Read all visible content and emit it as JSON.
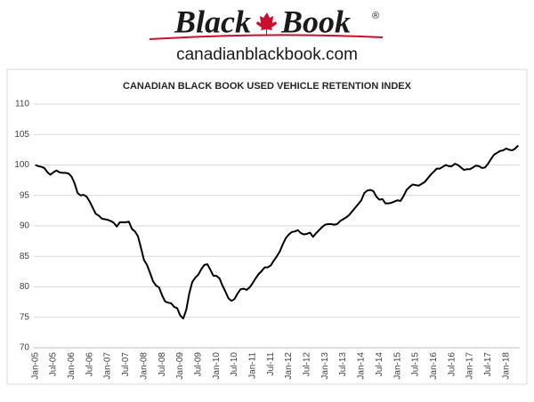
{
  "header": {
    "logo_left": "Black",
    "logo_right": "Book",
    "registered": "®",
    "website": "canadianblackbook.com"
  },
  "chart_data": {
    "type": "line",
    "title": "CANADIAN BLACK BOOK USED VEHICLE RETENTION INDEX",
    "ylim": [
      70,
      110
    ],
    "yticks": [
      70,
      75,
      80,
      85,
      90,
      95,
      100,
      105,
      110
    ],
    "grid": true,
    "color": "#000000",
    "categories": [
      "Jan-05",
      null,
      null,
      null,
      null,
      null,
      "Jul-05",
      null,
      null,
      null,
      null,
      null,
      "Jan-06",
      null,
      null,
      null,
      null,
      null,
      "Jul-06",
      null,
      null,
      null,
      null,
      null,
      "Jan-07",
      null,
      null,
      null,
      null,
      null,
      "Jul-07",
      null,
      null,
      null,
      null,
      null,
      "Jan-08",
      null,
      null,
      null,
      null,
      null,
      "Jul-08",
      null,
      null,
      null,
      null,
      null,
      "Jan-09",
      null,
      null,
      null,
      null,
      null,
      "Jul-09",
      null,
      null,
      null,
      null,
      null,
      "Jan-10",
      null,
      null,
      null,
      null,
      null,
      "Jul-10",
      null,
      null,
      null,
      null,
      null,
      "Jan-11",
      null,
      null,
      null,
      null,
      null,
      "Jul-11",
      null,
      null,
      null,
      null,
      null,
      "Jan-12",
      null,
      null,
      null,
      null,
      null,
      "Jul-12",
      null,
      null,
      null,
      null,
      null,
      "Jan-13",
      null,
      null,
      null,
      null,
      null,
      "Jul-13",
      null,
      null,
      null,
      null,
      null,
      "Jan-14",
      null,
      null,
      null,
      null,
      null,
      "Jul-14",
      null,
      null,
      null,
      null,
      null,
      "Jan-15",
      null,
      null,
      null,
      null,
      null,
      "Jul-15",
      null,
      null,
      null,
      null,
      null,
      "Jan-16",
      null,
      null,
      null,
      null,
      null,
      "Jul-16",
      null,
      null,
      null,
      null,
      null,
      "Jan-17",
      null,
      null,
      null,
      null,
      null,
      "Jul-17",
      null,
      null,
      null,
      null,
      null,
      "Jan-18",
      null,
      null,
      null,
      null
    ],
    "values": [
      100,
      99.8,
      99.7,
      99.5,
      98.8,
      98.4,
      98.8,
      99.1,
      98.8,
      98.7,
      98.7,
      98.6,
      98.1,
      97,
      95.4,
      95,
      95.1,
      94.8,
      94,
      93,
      92,
      91.7,
      91.2,
      91.1,
      91,
      90.8,
      90.5,
      89.9,
      90.6,
      90.6,
      90.6,
      90.7,
      89.5,
      89.1,
      88.3,
      86.4,
      84.4,
      83.6,
      82.3,
      80.9,
      80.2,
      79.9,
      78.6,
      77.6,
      77.4,
      77.3,
      76.7,
      76.5,
      75.3,
      74.8,
      76.2,
      78.9,
      80.8,
      81.5,
      82,
      82.9,
      83.6,
      83.7,
      82.8,
      81.8,
      81.8,
      81.4,
      80.2,
      79.2,
      78.1,
      77.7,
      78,
      78.9,
      79.6,
      79.7,
      79.5,
      79.9,
      80.6,
      81.4,
      82.1,
      82.6,
      83.2,
      83.2,
      83.5,
      84.3,
      85,
      85.8,
      87,
      88,
      88.6,
      89,
      89.1,
      89.3,
      88.8,
      88.6,
      88.7,
      88.9,
      88.2,
      88.8,
      89.3,
      89.8,
      90.2,
      90.3,
      90.3,
      90.2,
      90.3,
      90.8,
      91.1,
      91.4,
      91.8,
      92.4,
      93,
      93.6,
      94.2,
      95.4,
      95.8,
      95.9,
      95.7,
      94.8,
      94.3,
      94.4,
      93.7,
      93.7,
      93.8,
      94,
      94.2,
      94.1,
      94.9,
      95.9,
      96.4,
      96.8,
      96.7,
      96.6,
      96.9,
      97.2,
      97.8,
      98.4,
      98.9,
      99.4,
      99.4,
      99.7,
      100,
      99.8,
      99.8,
      100.2,
      100,
      99.6,
      99.2,
      99.3,
      99.3,
      99.6,
      99.9,
      99.8,
      99.5,
      99.6,
      100.2,
      101,
      101.7,
      102,
      102.3,
      102.4,
      102.7,
      102.5,
      102.4,
      102.7,
      103.2
    ]
  }
}
